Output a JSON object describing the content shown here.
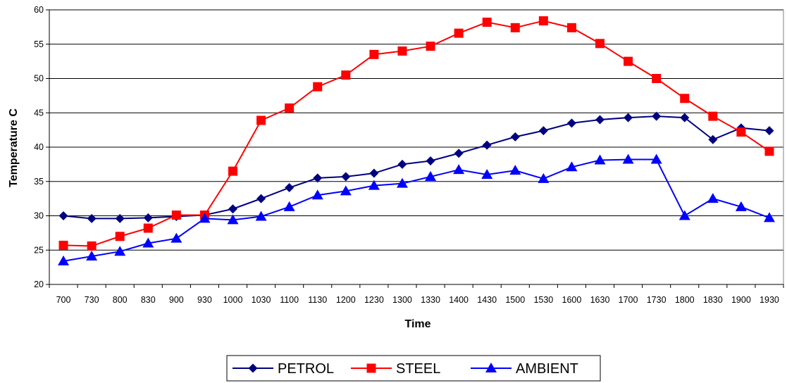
{
  "chart_data": {
    "type": "line",
    "title": "",
    "xlabel": "Time",
    "ylabel": "Temperature C",
    "ylim": [
      20,
      60
    ],
    "yticks": [
      20,
      25,
      30,
      35,
      40,
      45,
      50,
      55,
      60
    ],
    "grid": "horizontal",
    "legend_position": "bottom",
    "categories": [
      "700",
      "730",
      "800",
      "830",
      "900",
      "930",
      "1000",
      "1030",
      "1100",
      "1130",
      "1200",
      "1230",
      "1300",
      "1330",
      "1400",
      "1430",
      "1500",
      "1530",
      "1600",
      "1630",
      "1700",
      "1730",
      "1800",
      "1830",
      "1900",
      "1930"
    ],
    "series": [
      {
        "name": "PETROL",
        "color": "#000080",
        "marker": "diamond",
        "values": [
          30.0,
          29.6,
          29.6,
          29.7,
          29.9,
          30.1,
          31.0,
          32.5,
          34.1,
          35.5,
          35.7,
          36.2,
          37.5,
          38.0,
          39.1,
          40.3,
          41.5,
          42.4,
          43.5,
          44.0,
          44.3,
          44.5,
          44.3,
          41.1,
          42.8,
          42.4
        ]
      },
      {
        "name": "STEEL",
        "color": "#ff0000",
        "marker": "square",
        "values": [
          25.7,
          25.6,
          27.0,
          28.2,
          30.1,
          30.1,
          36.5,
          43.9,
          45.7,
          48.8,
          50.5,
          53.5,
          54.0,
          54.7,
          56.6,
          58.2,
          57.4,
          58.4,
          57.4,
          55.1,
          52.5,
          50.0,
          47.1,
          44.5,
          42.2,
          39.4
        ]
      },
      {
        "name": "AMBIENT",
        "color": "#0000ff",
        "marker": "triangle",
        "values": [
          23.4,
          24.1,
          24.8,
          26.0,
          26.7,
          29.6,
          29.4,
          29.9,
          31.3,
          33.0,
          33.6,
          34.4,
          34.7,
          35.7,
          36.7,
          36.0,
          36.6,
          35.4,
          37.1,
          38.1,
          38.2,
          38.2,
          30.0,
          32.5,
          31.3,
          29.7
        ]
      }
    ]
  }
}
